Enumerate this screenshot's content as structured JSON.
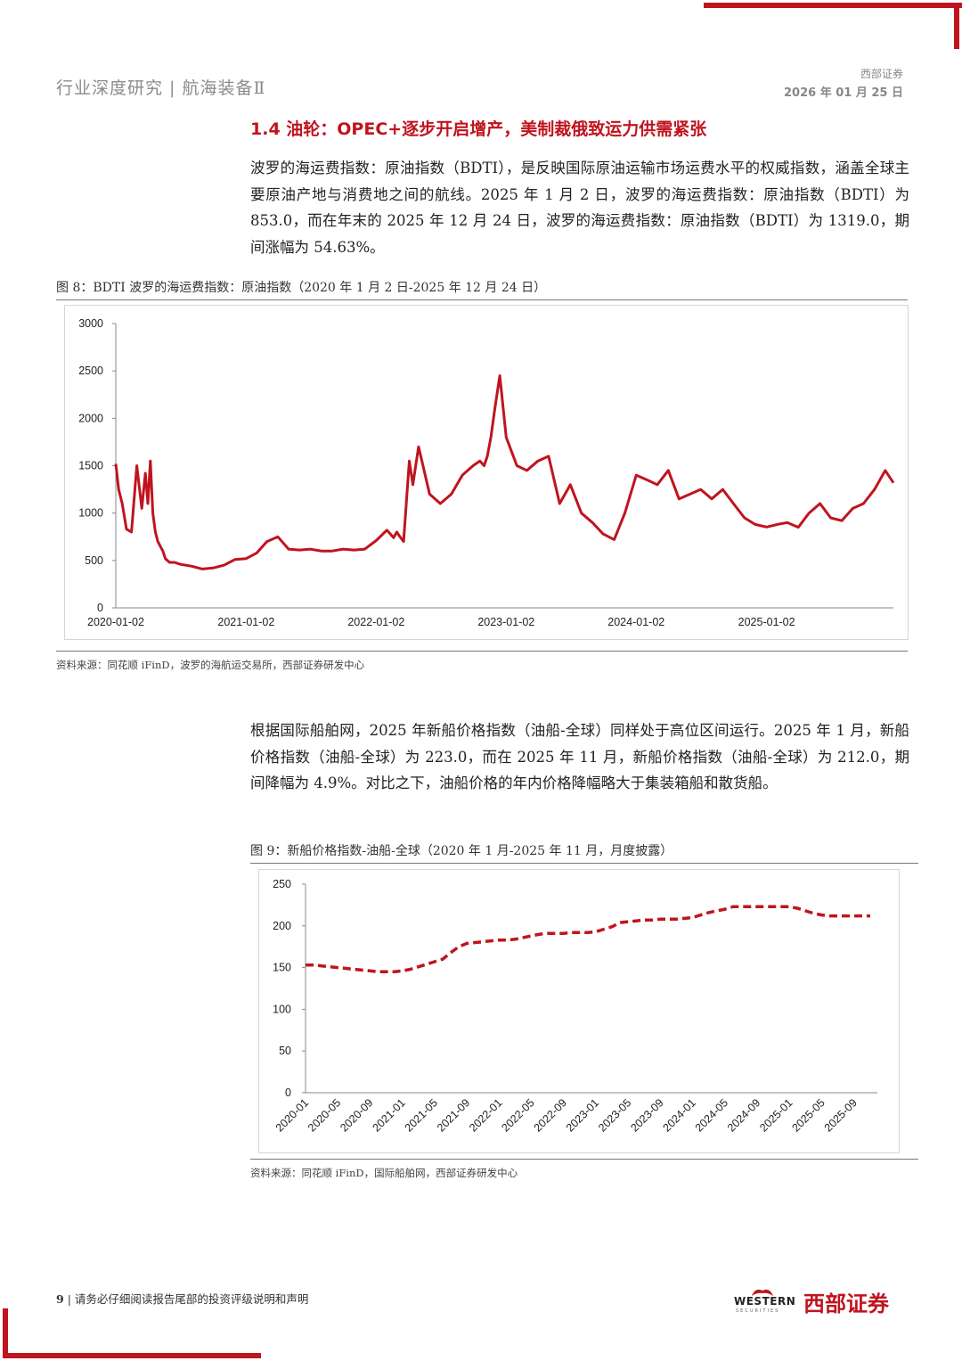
{
  "header": {
    "left": "行业深度研究 | 航海装备Ⅱ",
    "company": "西部证券",
    "date": "2026 年 01 月 25 日"
  },
  "section": {
    "title": "1.4 油轮：OPEC+逐步开启增产，美制裁俄致运力供需紧张",
    "para1": "波罗的海运费指数：原油指数（BDTI），是反映国际原油运输市场运费水平的权威指数，涵盖全球主要原油产地与消费地之间的航线。2025 年 1 月 2 日，波罗的海运费指数：原油指数（BDTI）为 853.0，而在年末的 2025 年 12 月 24 日，波罗的海运费指数：原油指数（BDTI）为 1319.0，期间涨幅为 54.63%。",
    "para2": "根据国际船舶网，2025 年新船价格指数（油船-全球）同样处于高位区间运行。2025 年 1 月，新船价格指数（油船-全球）为 223.0，而在 2025 年 11 月，新船价格指数（油船-全球）为 212.0，期间降幅为 4.9%。对比之下，油船价格的年内价格降幅略大于集装箱船和散货船。"
  },
  "figures": {
    "fig8_caption": "图 8：BDTI 波罗的海运费指数：原油指数（2020 年 1 月 2 日-2025 年 12 月 24 日）",
    "fig8_source": "资料来源：同花顺 iFinD，波罗的海航运交易所，西部证券研发中心",
    "fig9_caption": "图 9：新船价格指数-油船-全球（2020 年 1 月-2025 年 11 月，月度披露）",
    "fig9_source": "资料来源：同花顺 iFinD，国际船舶网，西部证券研发中心"
  },
  "footer": {
    "page": "9",
    "note": "请务必仔细阅读报告尾部的投资评级说明和声明",
    "logo_en": "WESTERN",
    "logo_en_sub": "SECURITIES",
    "logo_cn": "西部证券"
  },
  "colors": {
    "accent": "#c0141e",
    "line": "#c0141e"
  },
  "chart_data": [
    {
      "type": "line",
      "title": "",
      "xlabel": "",
      "ylabel": "",
      "ylim": [
        0,
        3000
      ],
      "yticks": [
        0,
        500,
        1000,
        1500,
        2000,
        2500,
        3000
      ],
      "xticks": [
        "2020-01-02",
        "2021-01-02",
        "2022-01-02",
        "2023-01-02",
        "2024-01-02",
        "2025-01-02"
      ],
      "xrange": [
        "2020-01-02",
        "2025-12-24"
      ],
      "grid": false,
      "line_style": "solid",
      "x": [
        "2020-01-02",
        "2020-01-10",
        "2020-01-20",
        "2020-02-01",
        "2020-02-15",
        "2020-03-01",
        "2020-03-15",
        "2020-03-25",
        "2020-04-01",
        "2020-04-08",
        "2020-04-15",
        "2020-04-22",
        "2020-04-29",
        "2020-05-06",
        "2020-05-13",
        "2020-05-20",
        "2020-06-01",
        "2020-06-15",
        "2020-07-01",
        "2020-08-01",
        "2020-09-01",
        "2020-10-01",
        "2020-11-01",
        "2020-12-01",
        "2021-01-02",
        "2021-02-01",
        "2021-03-01",
        "2021-04-01",
        "2021-05-01",
        "2021-06-01",
        "2021-07-01",
        "2021-08-01",
        "2021-09-01",
        "2021-10-01",
        "2021-11-01",
        "2021-12-01",
        "2022-01-02",
        "2022-02-01",
        "2022-02-20",
        "2022-03-01",
        "2022-03-08",
        "2022-03-20",
        "2022-04-05",
        "2022-04-15",
        "2022-05-01",
        "2022-06-01",
        "2022-07-01",
        "2022-08-01",
        "2022-09-01",
        "2022-10-01",
        "2022-10-20",
        "2022-11-01",
        "2022-11-10",
        "2022-11-20",
        "2022-12-01",
        "2022-12-15",
        "2023-01-02",
        "2023-02-01",
        "2023-03-01",
        "2023-04-01",
        "2023-05-01",
        "2023-06-01",
        "2023-07-01",
        "2023-08-01",
        "2023-09-01",
        "2023-10-01",
        "2023-11-01",
        "2023-12-01",
        "2024-01-02",
        "2024-02-01",
        "2024-03-01",
        "2024-04-01",
        "2024-05-01",
        "2024-06-01",
        "2024-07-01",
        "2024-08-01",
        "2024-09-01",
        "2024-10-01",
        "2024-11-01",
        "2024-12-01",
        "2025-01-02",
        "2025-02-01",
        "2025-03-01",
        "2025-04-01",
        "2025-05-01",
        "2025-06-01",
        "2025-07-01",
        "2025-08-01",
        "2025-09-01",
        "2025-10-01",
        "2025-11-01",
        "2025-12-01",
        "2025-12-24"
      ],
      "values": [
        1520,
        1250,
        1100,
        830,
        800,
        1500,
        1050,
        1420,
        1100,
        1550,
        1000,
        800,
        700,
        650,
        600,
        520,
        480,
        480,
        460,
        440,
        410,
        420,
        450,
        510,
        520,
        580,
        700,
        750,
        620,
        610,
        620,
        600,
        600,
        620,
        610,
        620,
        710,
        820,
        740,
        800,
        760,
        700,
        1550,
        1300,
        1700,
        1200,
        1100,
        1200,
        1400,
        1500,
        1550,
        1500,
        1600,
        1800,
        2100,
        2450,
        1800,
        1500,
        1450,
        1550,
        1600,
        1100,
        1300,
        1000,
        900,
        780,
        720,
        1000,
        1400,
        1350,
        1300,
        1450,
        1150,
        1200,
        1250,
        1150,
        1250,
        1100,
        950,
        880,
        853,
        880,
        900,
        850,
        1000,
        1100,
        950,
        920,
        1050,
        1100,
        1250,
        1450,
        1319
      ]
    },
    {
      "type": "line",
      "title": "",
      "xlabel": "",
      "ylabel": "",
      "ylim": [
        0,
        250
      ],
      "yticks": [
        0,
        50,
        100,
        150,
        200,
        250
      ],
      "line_style": "dashed",
      "grid": false,
      "x": [
        "2020-01",
        "2020-02",
        "2020-03",
        "2020-04",
        "2020-05",
        "2020-06",
        "2020-07",
        "2020-08",
        "2020-09",
        "2020-10",
        "2020-11",
        "2020-12",
        "2021-01",
        "2021-02",
        "2021-03",
        "2021-04",
        "2021-05",
        "2021-06",
        "2021-07",
        "2021-08",
        "2021-09",
        "2021-10",
        "2021-11",
        "2021-12",
        "2022-01",
        "2022-02",
        "2022-03",
        "2022-04",
        "2022-05",
        "2022-06",
        "2022-07",
        "2022-08",
        "2022-09",
        "2022-10",
        "2022-11",
        "2022-12",
        "2023-01",
        "2023-02",
        "2023-03",
        "2023-04",
        "2023-05",
        "2023-06",
        "2023-07",
        "2023-08",
        "2023-09",
        "2023-10",
        "2023-11",
        "2023-12",
        "2024-01",
        "2024-02",
        "2024-03",
        "2024-04",
        "2024-05",
        "2024-06",
        "2024-07",
        "2024-08",
        "2024-09",
        "2024-10",
        "2024-11",
        "2024-12",
        "2025-01",
        "2025-02",
        "2025-03",
        "2025-04",
        "2025-05",
        "2025-06",
        "2025-07",
        "2025-08",
        "2025-09",
        "2025-10",
        "2025-11"
      ],
      "xtick_labels": [
        "2020-01",
        "2020-05",
        "2020-09",
        "2021-01",
        "2021-05",
        "2021-09",
        "2022-01",
        "2022-05",
        "2022-09",
        "2023-01",
        "2023-05",
        "2023-09",
        "2024-01",
        "2024-05",
        "2024-09",
        "2025-01",
        "2025-05",
        "2025-09"
      ],
      "values": [
        153,
        153,
        152,
        151,
        150,
        149,
        148,
        147,
        146,
        145,
        145,
        145,
        146,
        148,
        151,
        154,
        157,
        160,
        168,
        175,
        179,
        180,
        181,
        182,
        183,
        183,
        184,
        186,
        188,
        190,
        191,
        191,
        191,
        192,
        192,
        192,
        193,
        196,
        199,
        204,
        205,
        206,
        207,
        207,
        208,
        208,
        208,
        209,
        210,
        213,
        216,
        218,
        220,
        223,
        223,
        223,
        223,
        223,
        223,
        223,
        223,
        221,
        218,
        215,
        213,
        212,
        212,
        212,
        212,
        212,
        212
      ]
    }
  ]
}
